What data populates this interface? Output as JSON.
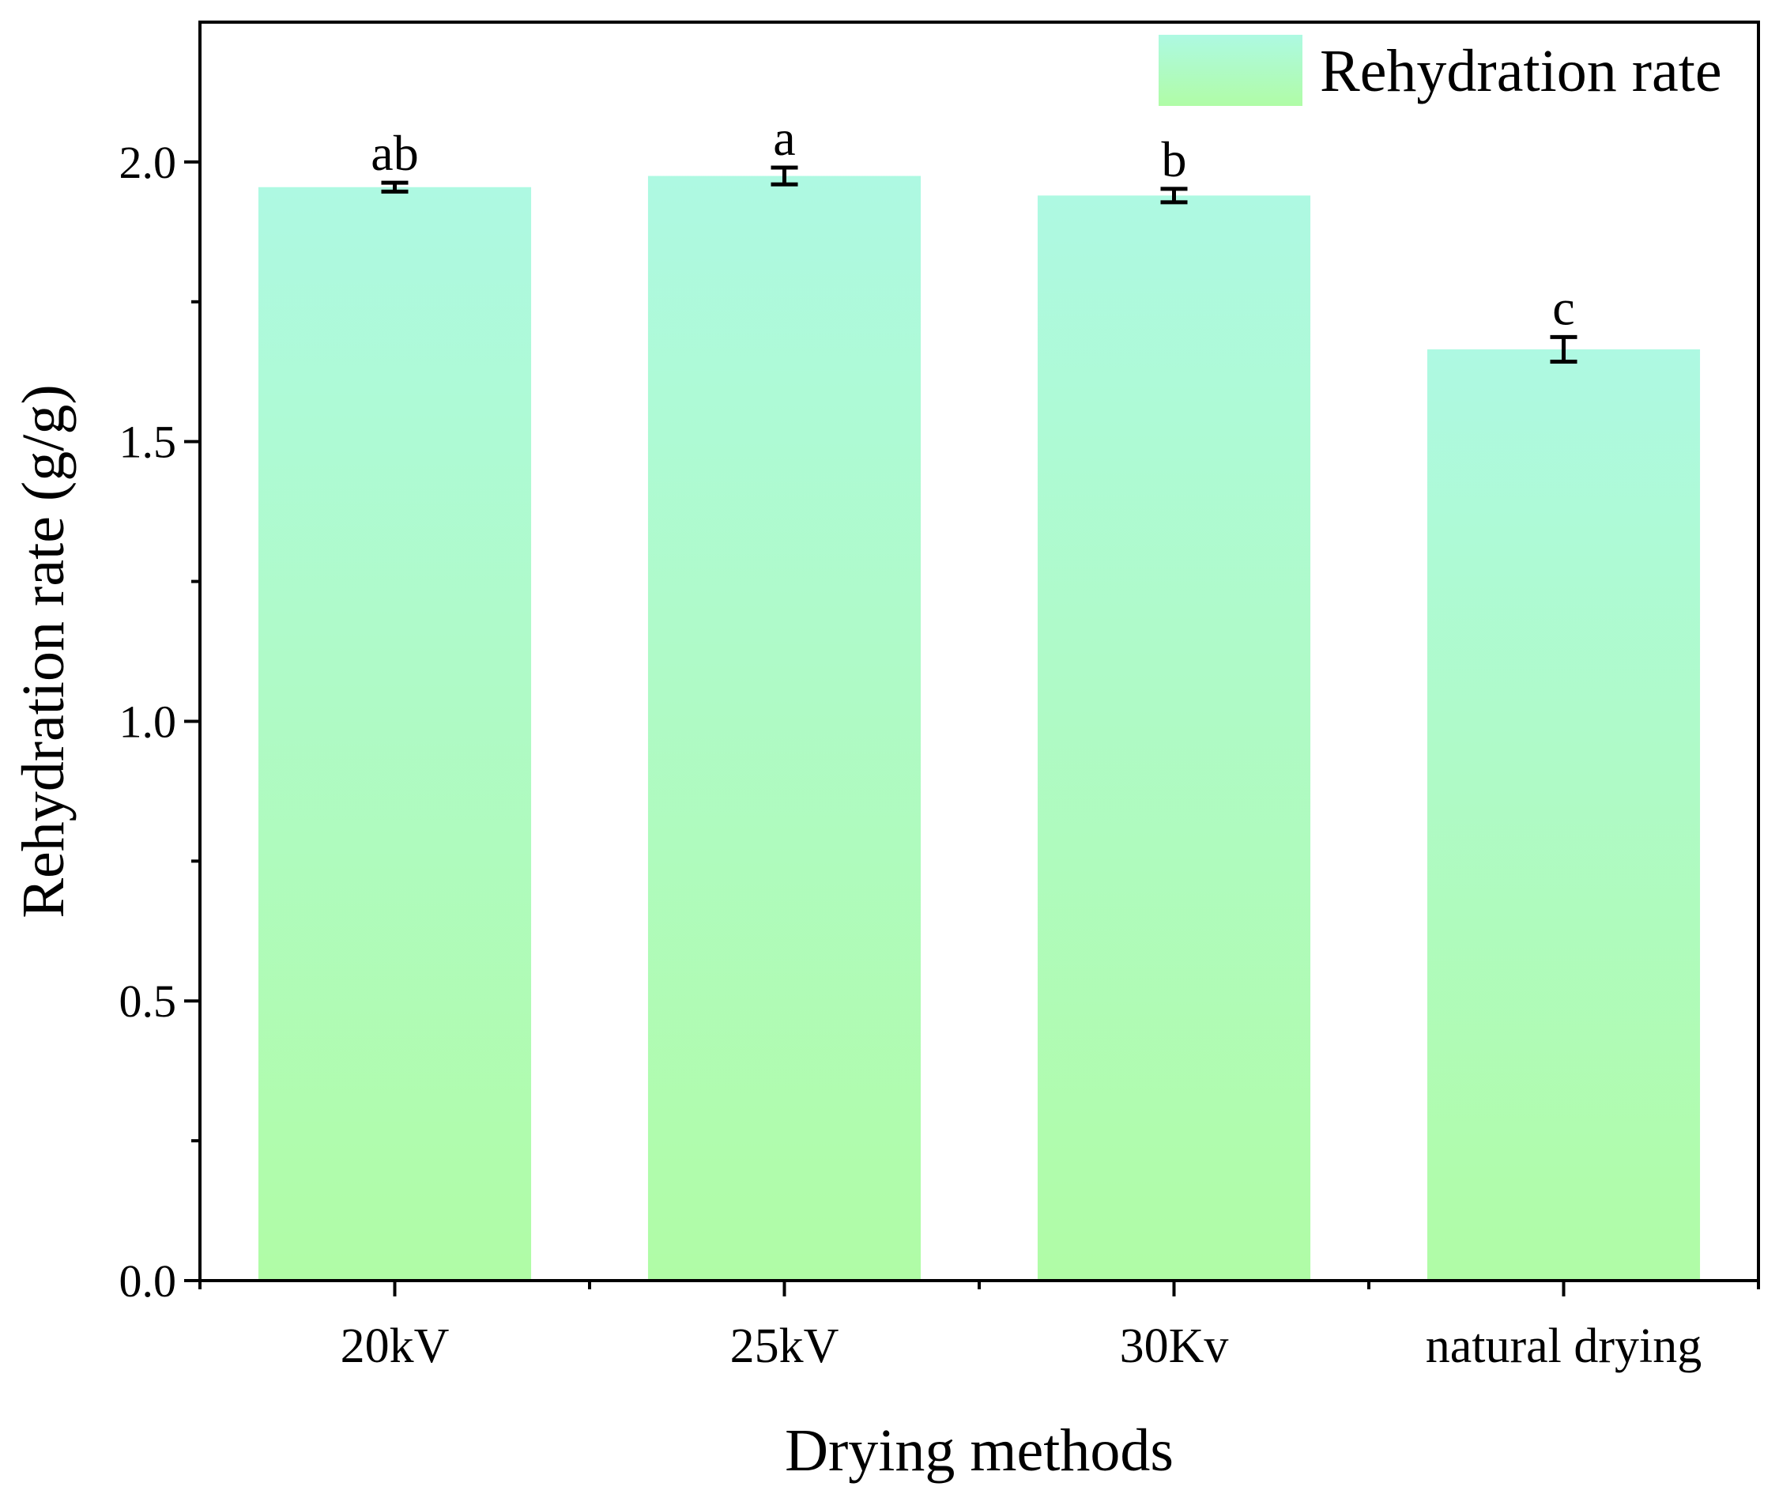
{
  "chart_data": {
    "type": "bar",
    "categories": [
      "20kV",
      "25kV",
      "30Kv",
      "natural drying"
    ],
    "series": [
      {
        "name": "Rehydration rate",
        "values": [
          1.955,
          1.975,
          1.94,
          1.665
        ],
        "errors": [
          0.008,
          0.015,
          0.012,
          0.022
        ],
        "significance": [
          "ab",
          "a",
          "b",
          "c"
        ]
      }
    ],
    "title": "",
    "xlabel": "Drying methods",
    "ylabel": "Rehydration rate (g/g)",
    "ylim": [
      0,
      2.25
    ],
    "yticks": [
      0.0,
      0.5,
      1.0,
      1.5,
      2.0
    ],
    "ytick_labels": [
      "0.0",
      "0.5",
      "1.0",
      "1.5",
      "2.0"
    ],
    "grid": false,
    "legend": "top-right",
    "colors": {
      "bar_top": "#aef9e2",
      "bar_bottom": "#b0fca6",
      "axis": "#000000"
    }
  }
}
